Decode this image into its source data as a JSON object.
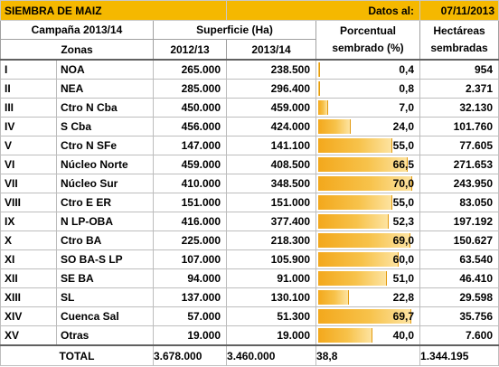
{
  "title": "SIEMBRA DE MAIZ",
  "datos_label": "Datos al:",
  "date": "07/11/2013",
  "header": {
    "campaign": "Campaña 2013/14",
    "zonas": "Zonas",
    "superficie": "Superficie (Ha)",
    "col_2012": "2012/13",
    "col_2013": "2013/14",
    "porcentual_1": "Porcentual",
    "porcentual_2": "sembrado (%)",
    "hectareas_1": "Hectáreas",
    "hectareas_2": "sembradas"
  },
  "rows": [
    {
      "roman": "I",
      "zona": "NOA",
      "s2012": "265.000",
      "s2013": "238.500",
      "pct": "0,4",
      "pct_value": 0.4,
      "ha": "954"
    },
    {
      "roman": "II",
      "zona": "NEA",
      "s2012": "285.000",
      "s2013": "296.400",
      "pct": "0,8",
      "pct_value": 0.8,
      "ha": "2.371"
    },
    {
      "roman": "III",
      "zona": "Ctro N Cba",
      "s2012": "450.000",
      "s2013": "459.000",
      "pct": "7,0",
      "pct_value": 7.0,
      "ha": "32.130"
    },
    {
      "roman": "IV",
      "zona": "S Cba",
      "s2012": "456.000",
      "s2013": "424.000",
      "pct": "24,0",
      "pct_value": 24.0,
      "ha": "101.760"
    },
    {
      "roman": "V",
      "zona": "Ctro N SFe",
      "s2012": "147.000",
      "s2013": "141.100",
      "pct": "55,0",
      "pct_value": 55.0,
      "ha": "77.605"
    },
    {
      "roman": "VI",
      "zona": "Núcleo Norte",
      "s2012": "459.000",
      "s2013": "408.500",
      "pct": "66,5",
      "pct_value": 66.5,
      "ha": "271.653"
    },
    {
      "roman": "VII",
      "zona": "Núcleo Sur",
      "s2012": "410.000",
      "s2013": "348.500",
      "pct": "70,0",
      "pct_value": 70.0,
      "ha": "243.950"
    },
    {
      "roman": "VIII",
      "zona": "Ctro E ER",
      "s2012": "151.000",
      "s2013": "151.000",
      "pct": "55,0",
      "pct_value": 55.0,
      "ha": "83.050"
    },
    {
      "roman": "IX",
      "zona": "N LP-OBA",
      "s2012": "416.000",
      "s2013": "377.400",
      "pct": "52,3",
      "pct_value": 52.3,
      "ha": "197.192"
    },
    {
      "roman": "X",
      "zona": "Ctro BA",
      "s2012": "225.000",
      "s2013": "218.300",
      "pct": "69,0",
      "pct_value": 69.0,
      "ha": "150.627"
    },
    {
      "roman": "XI",
      "zona": "SO BA-S LP",
      "s2012": "107.000",
      "s2013": "105.900",
      "pct": "60,0",
      "pct_value": 60.0,
      "ha": "63.540"
    },
    {
      "roman": "XII",
      "zona": "SE BA",
      "s2012": "94.000",
      "s2013": "91.000",
      "pct": "51,0",
      "pct_value": 51.0,
      "ha": "46.410"
    },
    {
      "roman": "XIII",
      "zona": "SL",
      "s2012": "137.000",
      "s2013": "130.100",
      "pct": "22,8",
      "pct_value": 22.8,
      "ha": "29.598"
    },
    {
      "roman": "XIV",
      "zona": "Cuenca Sal",
      "s2012": "57.000",
      "s2013": "51.300",
      "pct": "69,7",
      "pct_value": 69.7,
      "ha": "35.756"
    },
    {
      "roman": "XV",
      "zona": "Otras",
      "s2012": "19.000",
      "s2013": "19.000",
      "pct": "40,0",
      "pct_value": 40.0,
      "ha": "7.600"
    }
  ],
  "total": {
    "label": "TOTAL",
    "s2012": "3.678.000",
    "s2013": "3.460.000",
    "pct": "38,8",
    "pct_value": 38.8,
    "ha": "1.344.195"
  },
  "colors": {
    "title_bg": "#f5b800",
    "bar": "#f3a81c"
  }
}
